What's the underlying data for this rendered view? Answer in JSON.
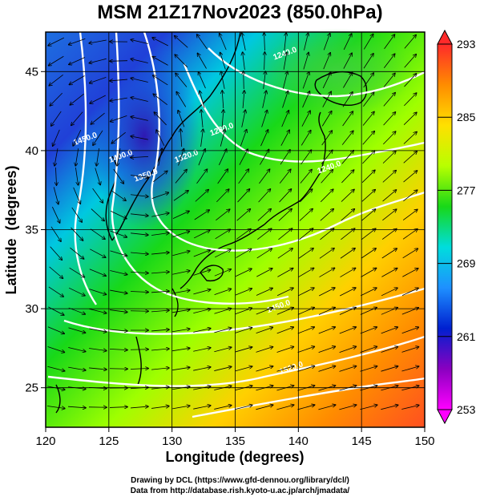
{
  "title": "MSM 21Z17Nov2023 (850.0hPa)",
  "map": {
    "xlabel": "Longitude (degrees)",
    "ylabel": "Latitude  (degrees)",
    "lon_range": [
      120,
      150
    ],
    "lat_range": [
      22.5,
      47.5
    ],
    "x_ticks": [
      120,
      125,
      130,
      135,
      140,
      145,
      150
    ],
    "y_ticks": [
      25,
      30,
      35,
      40,
      45
    ],
    "grid": true,
    "contour_labels": [
      {
        "text": "1450.0",
        "lon": 123.2,
        "lat": 40.6
      },
      {
        "text": "1400.0",
        "lon": 126.0,
        "lat": 39.5
      },
      {
        "text": "1350.0",
        "lon": 128.0,
        "lat": 38.3
      },
      {
        "text": "1320.0",
        "lon": 131.2,
        "lat": 39.5
      },
      {
        "text": "1280.0",
        "lon": 134.0,
        "lat": 41.2
      },
      {
        "text": "1240.0",
        "lon": 139.0,
        "lat": 46.0
      },
      {
        "text": "1240.0",
        "lon": 142.5,
        "lat": 38.8
      },
      {
        "text": "1450.0",
        "lon": 138.5,
        "lat": 30.0
      },
      {
        "text": "1520.0",
        "lon": 139.5,
        "lat": 26.1
      }
    ]
  },
  "colorbar": {
    "min": 253,
    "max": 293,
    "tick_labels": [
      "293",
      "285",
      "277",
      "269",
      "261",
      "253"
    ],
    "tick_values": [
      293,
      285,
      277,
      269,
      261,
      253
    ],
    "colors": [
      "#ff2a2a",
      "#ff8c00",
      "#ffe000",
      "#b8ff00",
      "#18d818",
      "#00dddd",
      "#1e90ff",
      "#0020d0",
      "#8a00c0",
      "#ff00ff"
    ]
  },
  "credits": {
    "line1": "Drawing by DCL (https://www.gfd-dennou.org/library/dcl/)",
    "line2": "Data from http://database.rish.kyoto-u.ac.jp/arch/jmadata/"
  }
}
